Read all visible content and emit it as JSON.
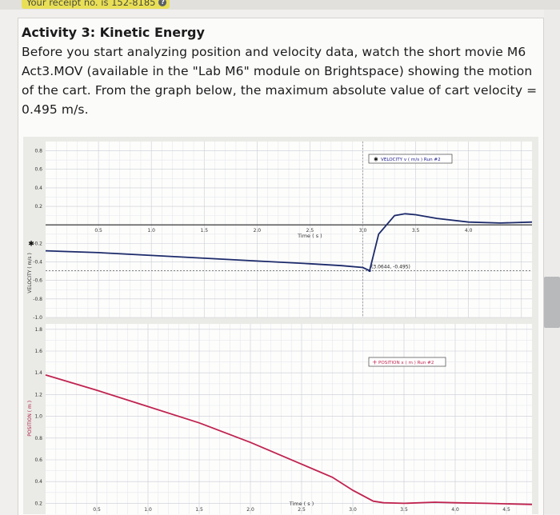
{
  "receipt": {
    "text": "Your receipt no. is 152-8185",
    "icon": "question-icon"
  },
  "heading": "Activity 3: Kinetic Energy",
  "paragraph": "Before you start analyzing position and velocity data, watch the short movie M6 Act3.MOV (available in the \"Lab M6\" module on Brightspace) showing the motion of the cart. From the graph below, the maximum absolute value of cart velocity = 0.495 m/s.",
  "chart_data": [
    {
      "type": "line",
      "legend": "VELOCITY v ( m/s ) Run #2",
      "ylabel": "VELOCITY ( m/s )",
      "xlabel": "Time ( s )",
      "x_ticks": [
        "0.5",
        "1.0",
        "1.5",
        "2.0",
        "2.5",
        "3.0",
        "3.5",
        "4.0"
      ],
      "y_ticks": [
        "0.8",
        "0.6",
        "0.4",
        "0.2",
        "-0.2",
        "-0.4",
        "-0.6",
        "-0.8",
        "-1.0"
      ],
      "ylim": [
        -1.0,
        0.9
      ],
      "xlim": [
        0,
        4.6
      ],
      "annotation": "(3.0644, -0.495)",
      "series": [
        {
          "name": "VELOCITY v ( m/s ) Run #2",
          "x": [
            0.0,
            0.5,
            1.0,
            1.5,
            2.0,
            2.5,
            2.8,
            3.0,
            3.0644,
            3.15,
            3.3,
            3.4,
            3.5,
            3.7,
            4.0,
            4.3,
            4.6
          ],
          "y": [
            -0.28,
            -0.3,
            -0.33,
            -0.36,
            -0.39,
            -0.42,
            -0.44,
            -0.46,
            -0.495,
            -0.1,
            0.1,
            0.12,
            0.11,
            0.07,
            0.03,
            0.02,
            0.03
          ]
        }
      ]
    },
    {
      "type": "line",
      "legend": "POSITION x ( m ) Run #2",
      "ylabel": "POSITION ( m )",
      "xlabel": "Time ( s )",
      "x_ticks": [
        "0.5",
        "1.0",
        "1.5",
        "2.0",
        "2.5",
        "3.0",
        "3.5",
        "4.0",
        "4.5"
      ],
      "y_ticks": [
        "1.8",
        "1.6",
        "1.4",
        "1.2",
        "1.0",
        "0.8",
        "0.6",
        "0.4",
        "0.2"
      ],
      "ylim": [
        0.1,
        1.85
      ],
      "xlim": [
        0,
        4.75
      ],
      "series": [
        {
          "name": "POSITION x ( m ) Run #2",
          "x": [
            0.0,
            0.5,
            1.0,
            1.5,
            2.0,
            2.5,
            2.8,
            3.0,
            3.2,
            3.3,
            3.5,
            3.8,
            4.0,
            4.3,
            4.75
          ],
          "y": [
            1.38,
            1.24,
            1.09,
            0.94,
            0.76,
            0.56,
            0.44,
            0.32,
            0.22,
            0.205,
            0.2,
            0.21,
            0.205,
            0.2,
            0.19
          ]
        }
      ]
    }
  ]
}
